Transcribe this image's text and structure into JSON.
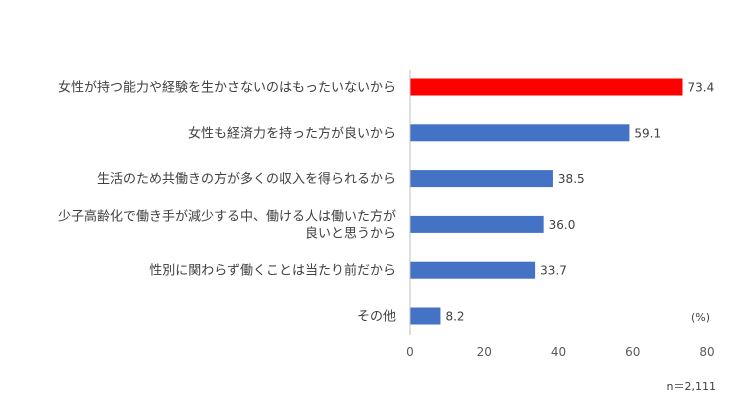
{
  "chart_data": {
    "type": "bar",
    "orientation": "horizontal",
    "categories": [
      [
        "女性が持つ能力や経験を生かさないのはもったいないから"
      ],
      [
        "女性も経済力を持った方が良いから"
      ],
      [
        "生活のため共働きの方が多くの収入を得られるから"
      ],
      [
        "少子高齢化で働き手が減少する中、働ける人は働いた方が",
        "良いと思うから"
      ],
      [
        "性別に関わらず働くことは当たり前だから"
      ],
      [
        "その他"
      ]
    ],
    "values": [
      73.4,
      59.1,
      38.5,
      36.0,
      33.7,
      8.2
    ],
    "value_labels": [
      "73.4",
      "59.1",
      "38.5",
      "36.0",
      "33.7",
      "8.2"
    ],
    "bar_colors": [
      "#ff0000",
      "#4472c4",
      "#4472c4",
      "#4472c4",
      "#4472c4",
      "#4472c4"
    ],
    "xlim": [
      0,
      80
    ],
    "xticks": [
      0,
      20,
      40,
      60,
      80
    ],
    "unit_label": "(%)",
    "sample_note": "n＝2,111",
    "grid": false,
    "legend": "none"
  }
}
